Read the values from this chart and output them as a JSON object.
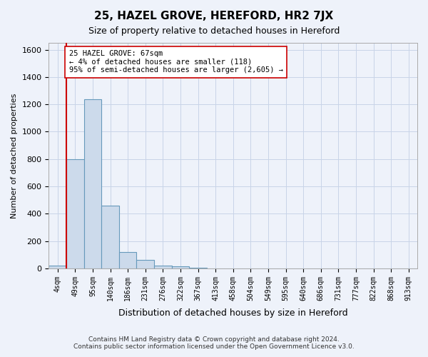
{
  "title": "25, HAZEL GROVE, HEREFORD, HR2 7JX",
  "subtitle": "Size of property relative to detached houses in Hereford",
  "xlabel": "Distribution of detached houses by size in Hereford",
  "ylabel": "Number of detached properties",
  "footer_line1": "Contains HM Land Registry data © Crown copyright and database right 2024.",
  "footer_line2": "Contains public sector information licensed under the Open Government Licence v3.0.",
  "bin_labels": [
    "4sqm",
    "49sqm",
    "95sqm",
    "140sqm",
    "186sqm",
    "231sqm",
    "276sqm",
    "322sqm",
    "367sqm",
    "413sqm",
    "458sqm",
    "504sqm",
    "549sqm",
    "595sqm",
    "640sqm",
    "686sqm",
    "731sqm",
    "777sqm",
    "822sqm",
    "868sqm",
    "913sqm"
  ],
  "bar_values": [
    22,
    800,
    1240,
    460,
    120,
    60,
    20,
    15,
    5,
    2,
    1,
    0,
    0,
    0,
    0,
    0,
    0,
    0,
    0,
    0,
    0
  ],
  "bar_color": "#ccdaeb",
  "bar_edge_color": "#6699bb",
  "ylim": [
    0,
    1650
  ],
  "yticks": [
    0,
    200,
    400,
    600,
    800,
    1000,
    1200,
    1400,
    1600
  ],
  "property_bin_index": 1,
  "vline_color": "#cc0000",
  "annotation_text": "25 HAZEL GROVE: 67sqm\n← 4% of detached houses are smaller (118)\n95% of semi-detached houses are larger (2,605) →",
  "annotation_box_color": "#ffffff",
  "annotation_border_color": "#cc0000",
  "grid_color": "#c8d4e8",
  "background_color": "#eef2fa"
}
